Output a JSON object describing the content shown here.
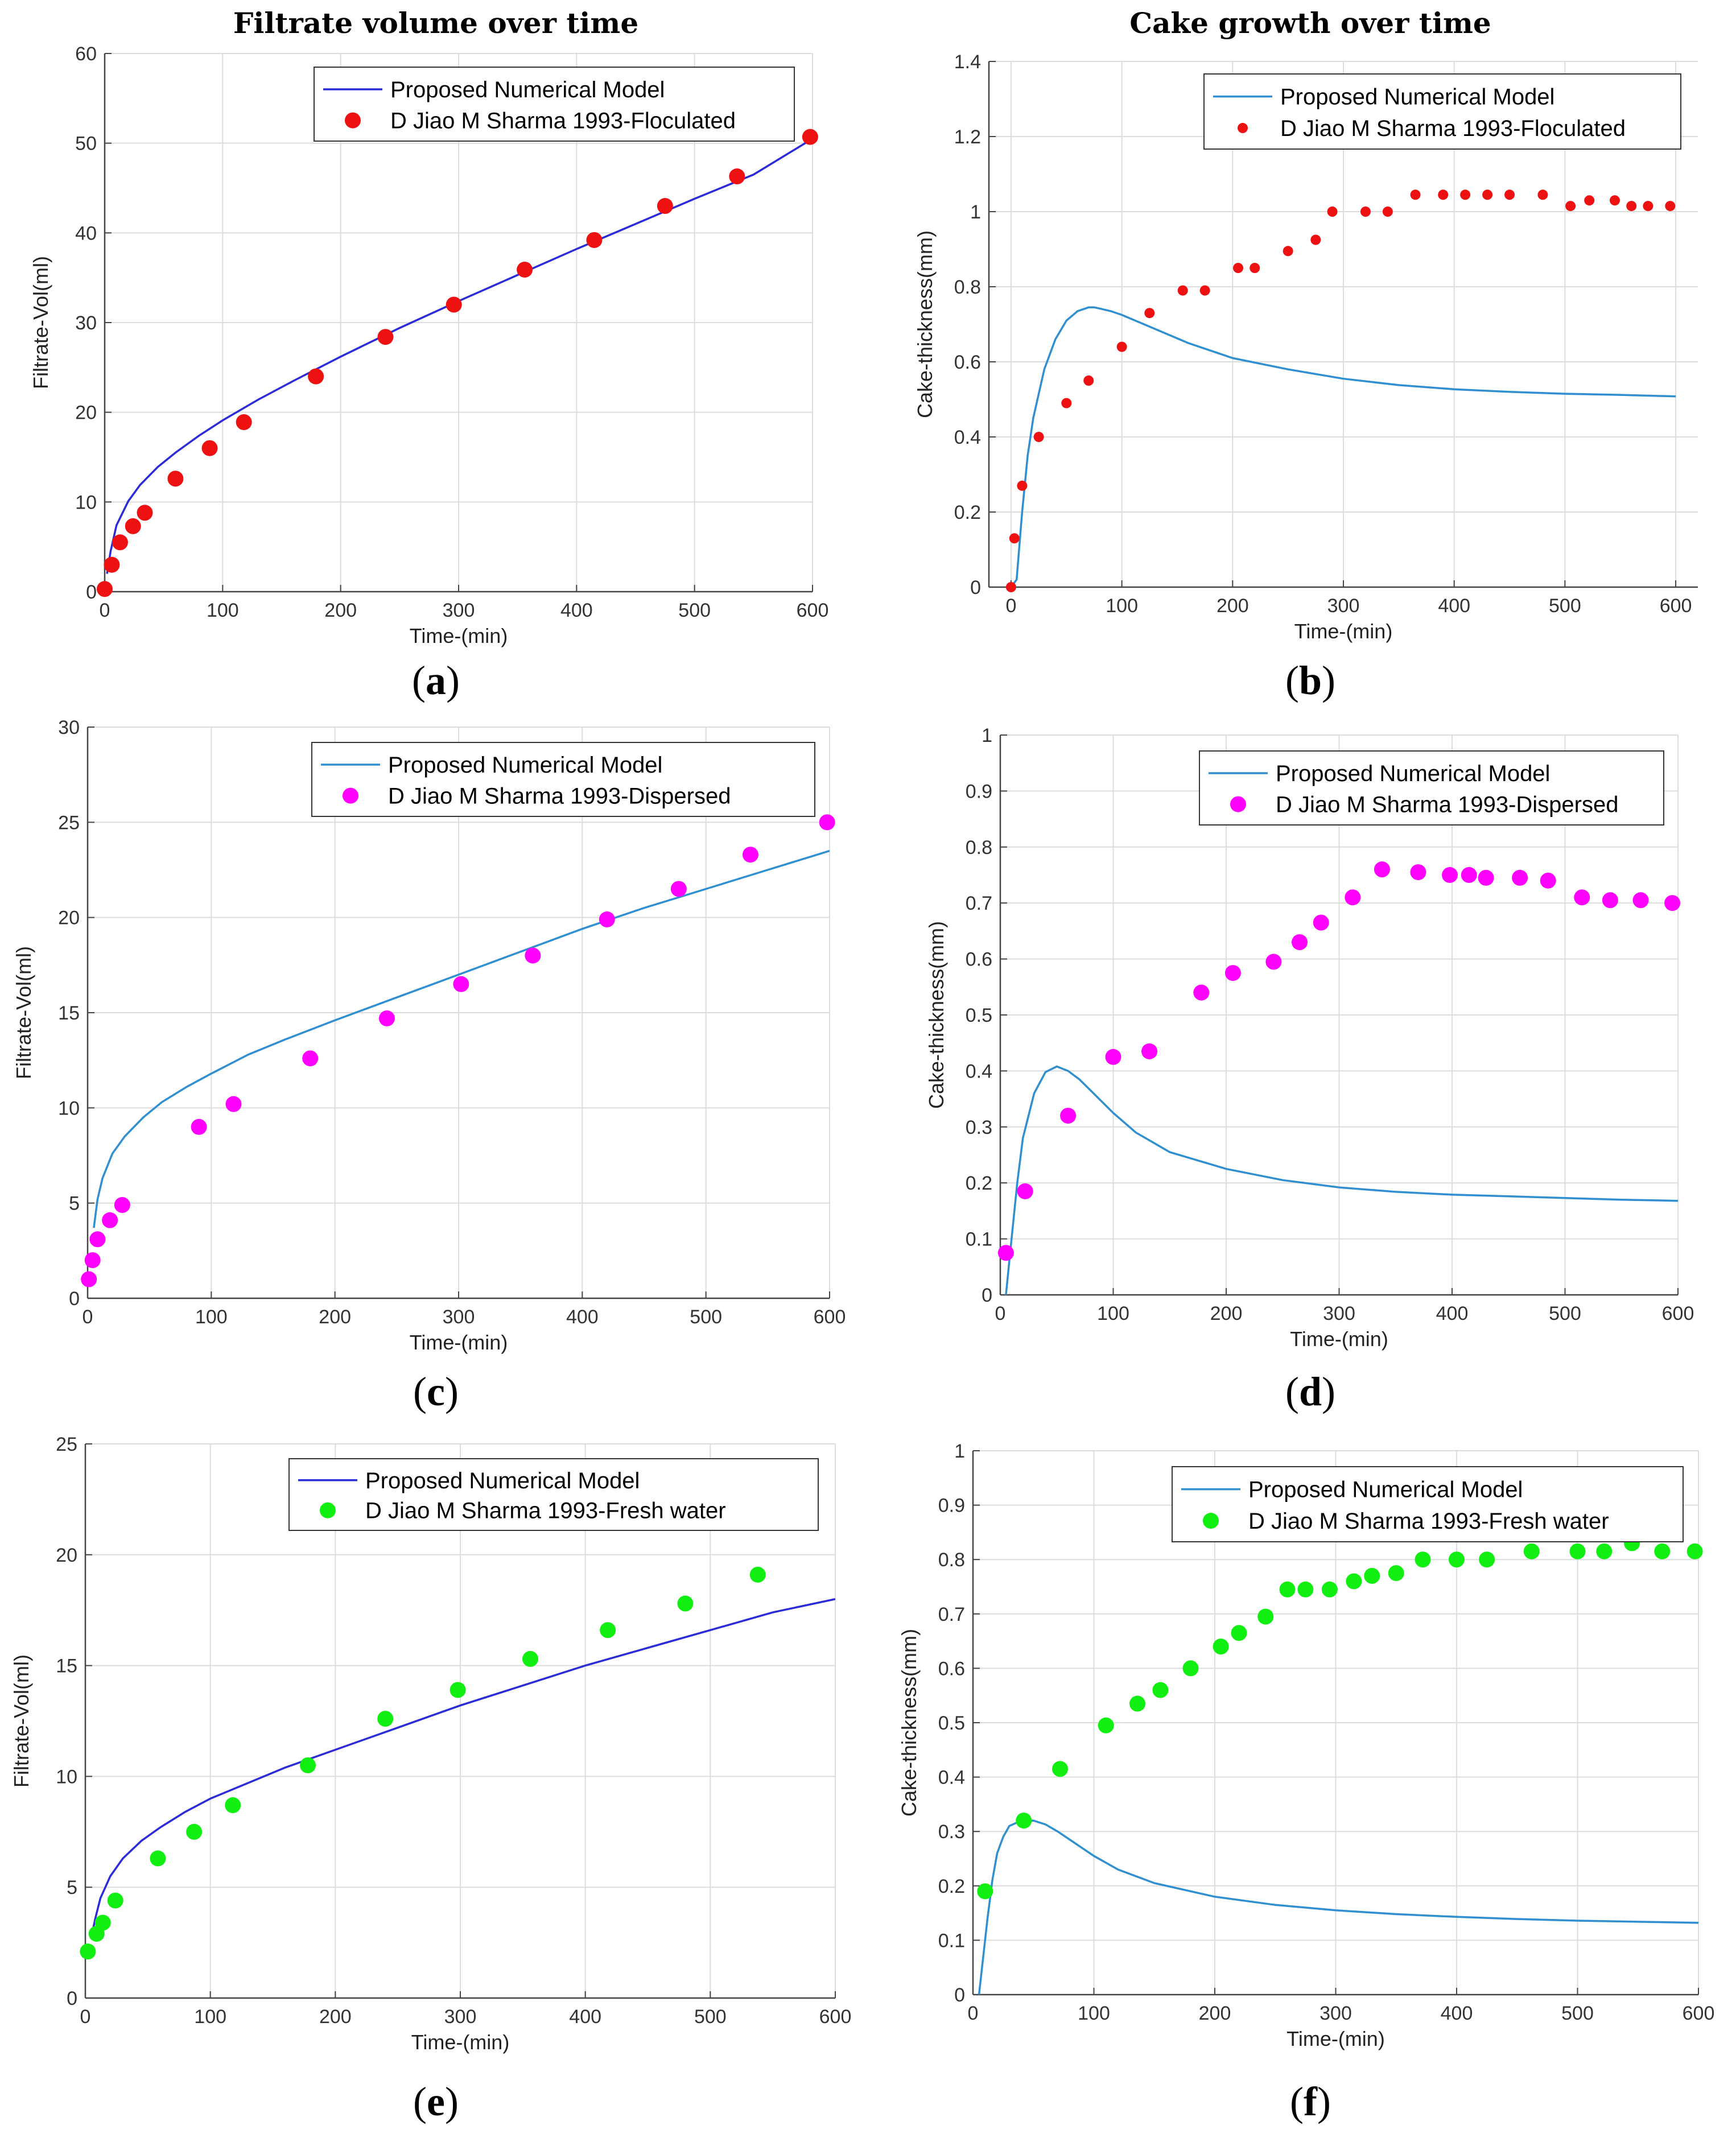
{
  "column_titles": [
    "Filtrate volume over time",
    "Cake growth over time"
  ],
  "colors": {
    "model_blue": "#2b2bd9",
    "model_lightblue": "#2f8fd0",
    "red": "#ee1111",
    "magenta": "#ff00ff",
    "green": "#11ee11"
  },
  "chart_data": [
    {
      "label": "a",
      "type": "scatter+line",
      "xlabel": "Time-(min)",
      "ylabel": "Filtrate-Vol(ml)",
      "xlim": [
        0,
        600
      ],
      "ylim": [
        0,
        60
      ],
      "xticks": [
        0,
        100,
        200,
        300,
        400,
        500,
        600
      ],
      "yticks": [
        0,
        10,
        20,
        30,
        40,
        50,
        60
      ],
      "legend": [
        "Proposed Numerical Model",
        "D Jiao M Sharma 1993-Floculated"
      ],
      "line_color": "#2b2bd9",
      "marker_color": "#ee1111",
      "marker": "large",
      "line": {
        "x": [
          2,
          5,
          10,
          20,
          30,
          45,
          60,
          80,
          100,
          130,
          160,
          200,
          250,
          300,
          350,
          400,
          450,
          500,
          550,
          600
        ],
        "y": [
          2.0,
          4.5,
          7.4,
          10.1,
          11.9,
          13.9,
          15.5,
          17.4,
          19.1,
          21.4,
          23.5,
          26.2,
          29.4,
          32.4,
          35.3,
          38.2,
          41.0,
          43.8,
          46.5,
          50.5
        ]
      },
      "points": {
        "x": [
          0,
          6,
          13,
          24,
          34,
          60,
          89,
          118,
          179,
          238,
          296,
          356,
          415,
          475,
          536,
          598
        ],
        "y": [
          0.3,
          3.0,
          5.5,
          7.3,
          8.8,
          12.6,
          16.0,
          18.9,
          24.0,
          28.4,
          32.0,
          35.9,
          39.2,
          43.0,
          46.3,
          50.7
        ]
      }
    },
    {
      "label": "b",
      "type": "scatter+line",
      "xlabel": "Time-(min)",
      "ylabel": "Cake-thickness(mm)",
      "xlim": [
        -20,
        620
      ],
      "ylim": [
        0,
        1.4
      ],
      "xticks": [
        0,
        100,
        200,
        300,
        400,
        500,
        600
      ],
      "yticks": [
        0,
        0.2,
        0.4,
        0.6,
        0.8,
        1,
        1.2,
        1.4
      ],
      "legend": [
        "Proposed Numerical Model",
        "D Jiao M Sharma 1993-Floculated"
      ],
      "line_color": "#2f8fd0",
      "marker_color": "#ee1111",
      "marker": "small",
      "line": {
        "x": [
          0,
          5,
          10,
          15,
          20,
          30,
          40,
          50,
          60,
          70,
          75,
          80,
          90,
          100,
          120,
          140,
          160,
          180,
          200,
          250,
          300,
          350,
          400,
          450,
          500,
          550,
          600
        ],
        "y": [
          0.0,
          0.02,
          0.2,
          0.35,
          0.45,
          0.58,
          0.66,
          0.71,
          0.735,
          0.745,
          0.745,
          0.742,
          0.735,
          0.725,
          0.7,
          0.675,
          0.65,
          0.63,
          0.61,
          0.58,
          0.555,
          0.538,
          0.527,
          0.52,
          0.515,
          0.512,
          0.508
        ]
      },
      "points": {
        "x": [
          0,
          3,
          10,
          25,
          50,
          70,
          100,
          125,
          155,
          175,
          205,
          220,
          250,
          275,
          290,
          320,
          340,
          365,
          390,
          410,
          430,
          450,
          480,
          505,
          522,
          545,
          560,
          575,
          595
        ],
        "y": [
          0.0,
          0.13,
          0.27,
          0.4,
          0.49,
          0.55,
          0.64,
          0.73,
          0.79,
          0.79,
          0.85,
          0.85,
          0.895,
          0.925,
          1.0,
          1.0,
          1.0,
          1.045,
          1.045,
          1.045,
          1.045,
          1.045,
          1.045,
          1.015,
          1.03,
          1.03,
          1.015,
          1.015,
          1.015
        ]
      }
    },
    {
      "label": "c",
      "type": "scatter+line",
      "xlabel": "Time-(min)",
      "ylabel": "Filtrate-Vol(ml)",
      "xlim": [
        0,
        600
      ],
      "ylim": [
        0,
        30
      ],
      "xticks": [
        0,
        100,
        200,
        300,
        400,
        500,
        600
      ],
      "yticks": [
        0,
        5,
        10,
        15,
        20,
        25,
        30
      ],
      "legend": [
        "Proposed Numerical Model",
        "D Jiao M Sharma 1993-Dispersed"
      ],
      "line_color": "#2f8fd0",
      "marker_color": "#ff00ff",
      "marker": "large",
      "line": {
        "x": [
          5,
          8,
          12,
          20,
          30,
          45,
          60,
          80,
          100,
          130,
          160,
          200,
          250,
          300,
          350,
          400,
          450,
          500,
          550,
          600
        ],
        "y": [
          3.7,
          5.2,
          6.3,
          7.6,
          8.5,
          9.5,
          10.3,
          11.1,
          11.8,
          12.8,
          13.6,
          14.6,
          15.8,
          17.0,
          18.2,
          19.4,
          20.5,
          21.5,
          22.5,
          23.5
        ]
      },
      "points": {
        "x": [
          1,
          4,
          8,
          18,
          28,
          90,
          118,
          180,
          242,
          302,
          360,
          420,
          478,
          536,
          598
        ],
        "y": [
          1.0,
          2.0,
          3.1,
          4.1,
          4.9,
          9.0,
          10.2,
          12.6,
          14.7,
          16.5,
          18.0,
          19.9,
          21.5,
          23.3,
          25.0
        ]
      }
    },
    {
      "label": "d",
      "type": "scatter+line",
      "xlabel": "Time-(min)",
      "ylabel": "Cake-thickness(mm)",
      "xlim": [
        0,
        600
      ],
      "ylim": [
        0,
        1
      ],
      "xticks": [
        0,
        100,
        200,
        300,
        400,
        500,
        600
      ],
      "yticks": [
        0,
        0.1,
        0.2,
        0.3,
        0.4,
        0.5,
        0.6,
        0.7,
        0.8,
        0.9,
        1
      ],
      "legend": [
        "Proposed Numerical Model",
        "D Jiao M Sharma 1993-Dispersed"
      ],
      "line_color": "#2f8fd0",
      "marker_color": "#ff00ff",
      "marker": "large",
      "line": {
        "x": [
          5,
          10,
          15,
          20,
          30,
          40,
          50,
          60,
          70,
          80,
          100,
          120,
          150,
          200,
          250,
          300,
          350,
          400,
          450,
          500,
          550,
          600
        ],
        "y": [
          0.0,
          0.1,
          0.2,
          0.28,
          0.36,
          0.398,
          0.408,
          0.4,
          0.385,
          0.365,
          0.325,
          0.29,
          0.255,
          0.225,
          0.205,
          0.192,
          0.184,
          0.179,
          0.176,
          0.173,
          0.17,
          0.168
        ]
      },
      "points": {
        "x": [
          5,
          22,
          60,
          100,
          132,
          178,
          206,
          242,
          265,
          284,
          312,
          338,
          370,
          398,
          415,
          430,
          460,
          485,
          515,
          540,
          567,
          595
        ],
        "y": [
          0.075,
          0.185,
          0.32,
          0.425,
          0.435,
          0.54,
          0.575,
          0.595,
          0.63,
          0.665,
          0.71,
          0.76,
          0.755,
          0.75,
          0.75,
          0.745,
          0.745,
          0.74,
          0.71,
          0.705,
          0.705,
          0.7
        ]
      }
    },
    {
      "label": "e",
      "type": "scatter+line",
      "xlabel": "Time-(min)",
      "ylabel": "Filtrate-Vol(ml)",
      "xlim": [
        0,
        600
      ],
      "ylim": [
        0,
        25
      ],
      "xticks": [
        0,
        100,
        200,
        300,
        400,
        500,
        600
      ],
      "yticks": [
        0,
        5,
        10,
        15,
        20,
        25
      ],
      "legend": [
        "Proposed Numerical Model",
        "D Jiao M Sharma 1993-Fresh water"
      ],
      "line_color": "#2b2bd9",
      "marker_color": "#11ee11",
      "marker": "large",
      "line": {
        "x": [
          5,
          8,
          12,
          20,
          30,
          45,
          60,
          80,
          100,
          130,
          160,
          200,
          250,
          300,
          350,
          400,
          450,
          500,
          550,
          600
        ],
        "y": [
          2.8,
          3.6,
          4.5,
          5.5,
          6.3,
          7.1,
          7.7,
          8.4,
          9.0,
          9.7,
          10.4,
          11.2,
          12.2,
          13.2,
          14.1,
          15.0,
          15.8,
          16.6,
          17.4,
          18.0
        ]
      },
      "points": {
        "x": [
          2,
          9,
          14,
          24,
          58,
          87,
          118,
          178,
          240,
          298,
          356,
          418,
          480,
          538
        ],
        "y": [
          2.1,
          2.9,
          3.4,
          4.4,
          6.3,
          7.5,
          8.7,
          10.5,
          12.6,
          13.9,
          15.3,
          16.6,
          17.8,
          19.1
        ]
      }
    },
    {
      "label": "f",
      "type": "scatter+line",
      "xlabel": "Time-(min)",
      "ylabel": "Cake-thickness(mm)",
      "xlim": [
        0,
        600
      ],
      "ylim": [
        0,
        1
      ],
      "xticks": [
        0,
        100,
        200,
        300,
        400,
        500,
        600
      ],
      "yticks": [
        0,
        0.1,
        0.2,
        0.3,
        0.4,
        0.5,
        0.6,
        0.7,
        0.8,
        0.9,
        1
      ],
      "legend": [
        "Proposed Numerical Model",
        "D Jiao M Sharma 1993-Fresh water"
      ],
      "line_color": "#2f8fd0",
      "marker_color": "#11ee11",
      "marker": "large",
      "line": {
        "x": [
          5,
          8,
          12,
          16,
          20,
          25,
          30,
          40,
          50,
          60,
          70,
          80,
          100,
          120,
          150,
          200,
          250,
          300,
          350,
          400,
          450,
          500,
          550,
          600
        ],
        "y": [
          0.0,
          0.06,
          0.14,
          0.21,
          0.26,
          0.29,
          0.31,
          0.32,
          0.32,
          0.313,
          0.3,
          0.285,
          0.255,
          0.23,
          0.205,
          0.18,
          0.165,
          0.155,
          0.148,
          0.143,
          0.139,
          0.136,
          0.134,
          0.132
        ]
      },
      "points": {
        "x": [
          10,
          42,
          72,
          110,
          136,
          155,
          180,
          205,
          220,
          242,
          260,
          275,
          295,
          315,
          330,
          350,
          372,
          400,
          425,
          462,
          500,
          522,
          545,
          570,
          597
        ],
        "y": [
          0.19,
          0.32,
          0.415,
          0.495,
          0.535,
          0.56,
          0.6,
          0.64,
          0.665,
          0.695,
          0.745,
          0.745,
          0.745,
          0.76,
          0.77,
          0.775,
          0.8,
          0.8,
          0.8,
          0.815,
          0.815,
          0.815,
          0.83,
          0.815,
          0.815
        ]
      }
    }
  ]
}
